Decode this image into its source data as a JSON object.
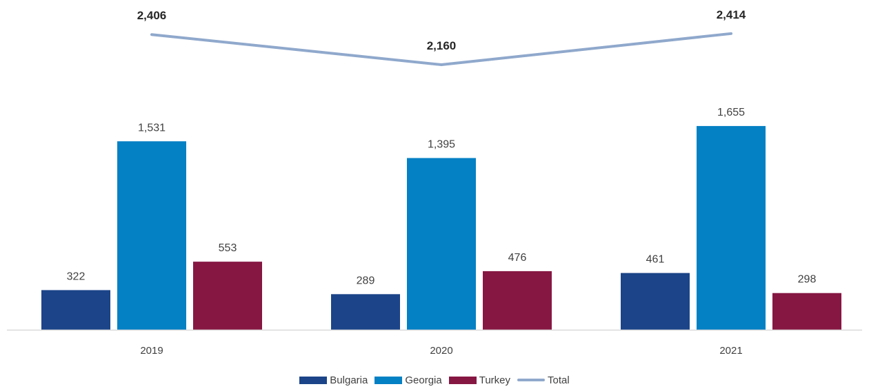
{
  "chart_data": {
    "type": "bar",
    "categories": [
      "2019",
      "2020",
      "2021"
    ],
    "series": [
      {
        "name": "Bulgaria",
        "type": "bar",
        "color": "#1b4489",
        "values": [
          322,
          289,
          461
        ]
      },
      {
        "name": "Georgia",
        "type": "bar",
        "color": "#0480c4",
        "values": [
          1531,
          1395,
          1655
        ]
      },
      {
        "name": "Turkey",
        "type": "bar",
        "color": "#861743",
        "values": [
          553,
          476,
          298
        ]
      },
      {
        "name": "Total",
        "type": "line",
        "color": "#8fa8cc",
        "values": [
          2406,
          2160,
          2414
        ]
      }
    ],
    "bar_labels": [
      [
        "322",
        "289",
        "461"
      ],
      [
        "1,531",
        "1,395",
        "1,655"
      ],
      [
        "553",
        "476",
        "298"
      ]
    ],
    "line_labels": [
      "2,406",
      "2,160",
      "2,414"
    ],
    "title": "",
    "xlabel": "",
    "ylabel": "",
    "grid": false,
    "legend_position": "bottom"
  }
}
